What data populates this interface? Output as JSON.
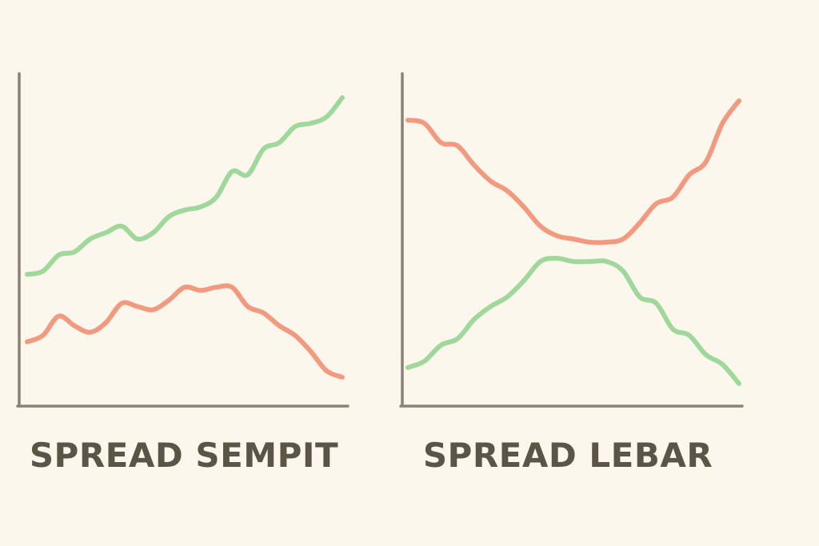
{
  "colors": {
    "background": "#fcf7ed",
    "axis": "#8a8275",
    "title": "#5b5548",
    "green_series": "#9fd89a",
    "red_series": "#f29a80"
  },
  "chart_data": [
    {
      "type": "line",
      "title": "SPREAD SEMPIT",
      "xlabel": "",
      "ylabel": "",
      "x_ticks": false,
      "y_ticks": false,
      "grid": false,
      "xlim": [
        0,
        20
      ],
      "ylim": [
        0,
        100
      ],
      "series": [
        {
          "color": "green",
          "x": [
            0,
            1,
            2,
            3,
            4,
            5,
            6,
            7,
            8,
            9,
            10,
            11,
            12,
            13,
            14,
            15,
            16,
            17,
            18,
            19,
            20
          ],
          "values": [
            39,
            40,
            45,
            46,
            50,
            52,
            54,
            50,
            52,
            57,
            59,
            60,
            63,
            71,
            70,
            78,
            80,
            85,
            86,
            88,
            94
          ]
        },
        {
          "color": "red",
          "x": [
            0,
            1,
            2,
            3,
            4,
            5,
            6,
            7,
            8,
            9,
            10,
            11,
            12,
            13,
            14,
            15,
            16,
            17,
            18,
            19,
            20
          ],
          "values": [
            18,
            20,
            26,
            23,
            21,
            24,
            30,
            29,
            28,
            31,
            35,
            34,
            35,
            35,
            29,
            27,
            23,
            20,
            15,
            9,
            7
          ]
        }
      ]
    },
    {
      "type": "line",
      "title": "SPREAD LEBAR",
      "xlabel": "",
      "ylabel": "",
      "x_ticks": false,
      "y_ticks": false,
      "grid": false,
      "xlim": [
        0,
        20
      ],
      "ylim": [
        0,
        100
      ],
      "series": [
        {
          "color": "red",
          "x": [
            0,
            1,
            2,
            3,
            4,
            5,
            6,
            7,
            8,
            9,
            10,
            11,
            12,
            13,
            14,
            15,
            16,
            17,
            18,
            19,
            20
          ],
          "values": [
            87,
            86,
            80,
            79,
            73,
            68,
            65,
            60,
            54,
            51,
            50,
            49,
            49,
            50,
            55,
            61,
            63,
            70,
            74,
            86,
            93
          ]
        },
        {
          "color": "green",
          "x": [
            0,
            1,
            2,
            3,
            4,
            5,
            6,
            7,
            8,
            9,
            10,
            11,
            12,
            13,
            14,
            15,
            16,
            17,
            18,
            19,
            20
          ],
          "values": [
            10,
            12,
            17,
            19,
            25,
            29,
            32,
            37,
            43,
            44,
            43,
            43,
            43,
            40,
            32,
            30,
            22,
            20,
            14,
            11,
            5
          ]
        }
      ]
    }
  ]
}
